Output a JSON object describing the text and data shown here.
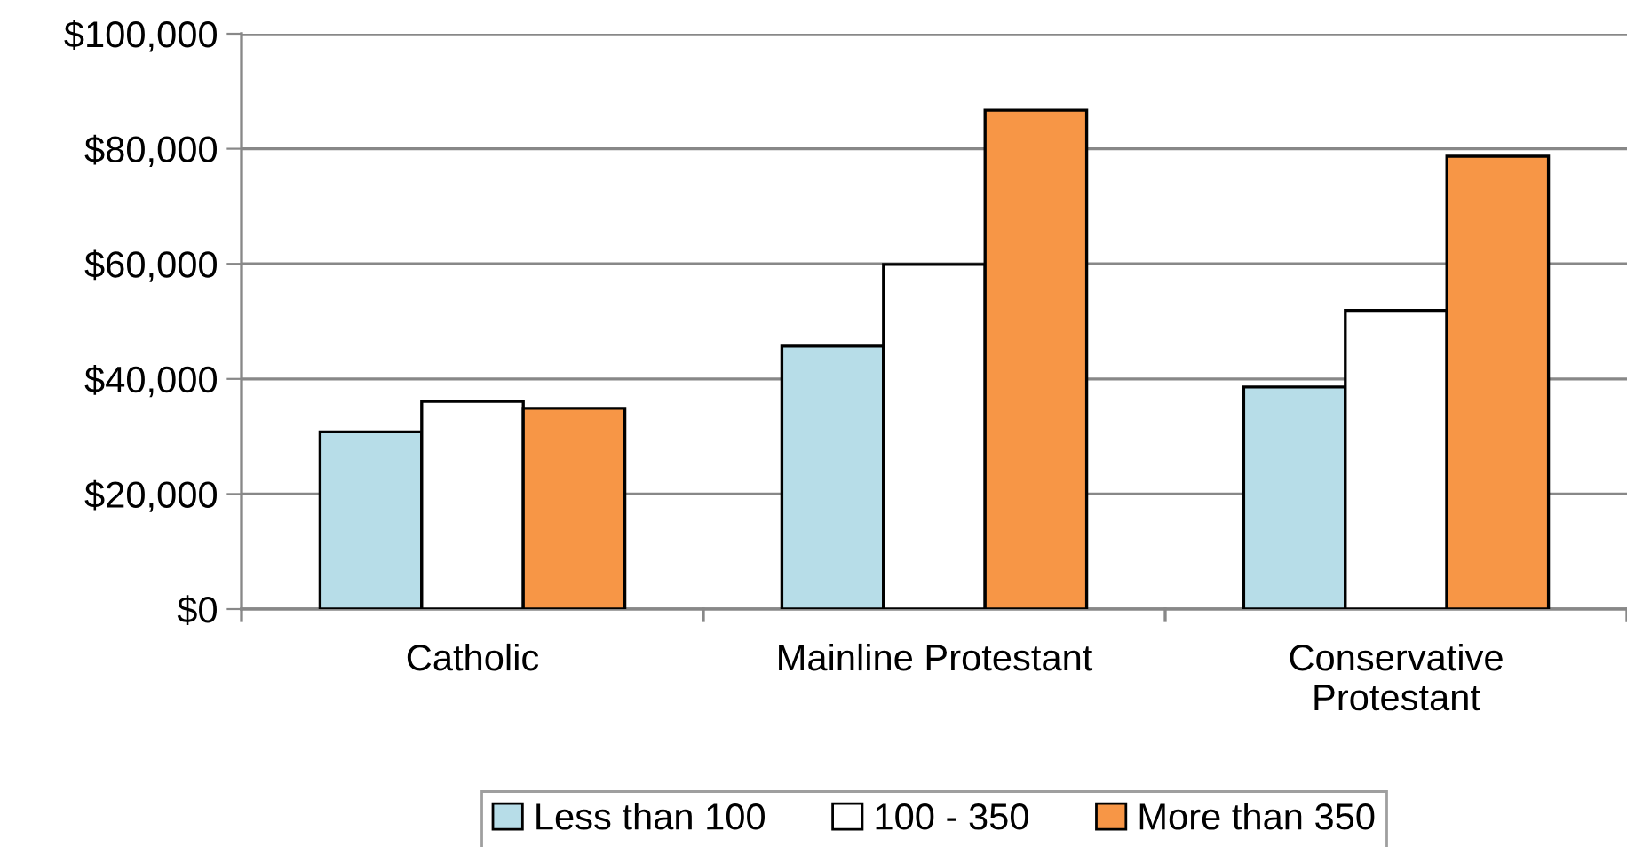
{
  "chart_data": {
    "type": "bar",
    "categories": [
      "Catholic",
      "Mainline Protestant",
      "Conservative\nProtestant"
    ],
    "series": [
      {
        "name": "Less than 100",
        "color": "#b7dde8",
        "values": [
          30800,
          45700,
          38600
        ]
      },
      {
        "name": "100 - 350",
        "color": "#ffffff",
        "values": [
          36100,
          59900,
          51900
        ]
      },
      {
        "name": "More than 350",
        "color": "#f79646",
        "values": [
          34900,
          86700,
          78700
        ]
      }
    ],
    "ylim": [
      0,
      100000
    ],
    "yticks": [
      {
        "value": 0,
        "label": "$0"
      },
      {
        "value": 20000,
        "label": "$20,000"
      },
      {
        "value": 40000,
        "label": "$40,000"
      },
      {
        "value": 60000,
        "label": "$60,000"
      },
      {
        "value": 80000,
        "label": "$80,000"
      },
      {
        "value": 100000,
        "label": "$100,000"
      }
    ],
    "grid": "y",
    "legend": "bottom"
  }
}
